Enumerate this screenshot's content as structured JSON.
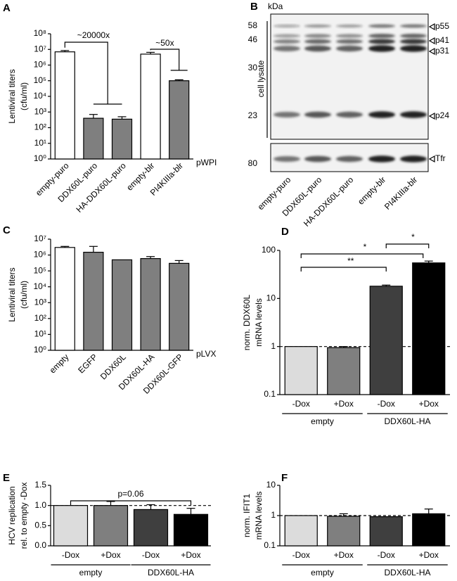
{
  "chart_data": [
    {
      "type": "bar",
      "panel": "A",
      "ylabel": [
        "Lentiviral titers",
        "(cfu/ml)"
      ],
      "log": true,
      "categories": [
        "empty-puro",
        "DDX60L-puro",
        "HA-DDX60L-puro",
        "empty-blr",
        "PI4KIIIa-blr"
      ],
      "values": [
        7000000,
        400,
        350,
        5000000,
        100000
      ],
      "errors": [
        1500000,
        300,
        150,
        1500000,
        15000
      ],
      "colors": [
        "#ffffff",
        "#7f7f7f",
        "#7f7f7f",
        "#ffffff",
        "#7f7f7f"
      ],
      "ylim": [
        1,
        100000000
      ],
      "yticks": [
        {
          "value": 1,
          "label": "10⁰"
        },
        {
          "value": 10,
          "label": "10¹"
        },
        {
          "value": 100,
          "label": "10²"
        },
        {
          "value": 1000,
          "label": "10³"
        },
        {
          "value": 10000,
          "label": "10⁴"
        },
        {
          "value": 100000,
          "label": "10⁵"
        },
        {
          "value": 1000000,
          "label": "10⁶"
        },
        {
          "value": 10000000,
          "label": "10⁷"
        },
        {
          "value": 100000000,
          "label": "10⁸"
        }
      ],
      "xlabel": "pWPI",
      "annotations": [
        "~20000x",
        "~50x"
      ]
    },
    {
      "type": "bar",
      "panel": "C",
      "ylabel": [
        "Lentiviral titers",
        "(cfu/ml)"
      ],
      "log": true,
      "categories": [
        "empty",
        "EGFP",
        "DDX60L",
        "DDX60L-HA",
        "DDX60L-GFP"
      ],
      "values": [
        3000000,
        1500000,
        500000,
        600000,
        300000
      ],
      "errors": [
        500000,
        2000000,
        0,
        200000,
        150000
      ],
      "colors": [
        "#ffffff",
        "#7f7f7f",
        "#7f7f7f",
        "#7f7f7f",
        "#7f7f7f"
      ],
      "ylim": [
        1,
        10000000
      ],
      "yticks": [
        {
          "value": 1,
          "label": "10⁰"
        },
        {
          "value": 10,
          "label": "10¹"
        },
        {
          "value": 100,
          "label": "10²"
        },
        {
          "value": 1000,
          "label": "10³"
        },
        {
          "value": 10000,
          "label": "10⁴"
        },
        {
          "value": 100000,
          "label": "10⁵"
        },
        {
          "value": 1000000,
          "label": "10⁶"
        },
        {
          "value": 10000000,
          "label": "10⁷"
        }
      ],
      "xlabel": "pLVX"
    },
    {
      "type": "bar",
      "panel": "D",
      "ylabel": [
        "norm. DDX60L",
        "mRNA levels"
      ],
      "log": true,
      "categories": [
        "-Dox",
        "+Dox",
        "-Dox",
        "+Dox"
      ],
      "groups": [
        "empty",
        "DDX60L-HA"
      ],
      "values": [
        1,
        0.95,
        18,
        55
      ],
      "errors": [
        0,
        0.05,
        1,
        5
      ],
      "colors": [
        "#dcdcdc",
        "#7f7f7f",
        "#3f3f3f",
        "#000000"
      ],
      "ylim": [
        0.1,
        100
      ],
      "yticks": [
        0.1,
        1,
        10,
        100
      ],
      "hline": 1,
      "annotations": [
        "**",
        "*",
        "*"
      ]
    },
    {
      "type": "bar",
      "panel": "E",
      "ylabel": [
        "HCV replication",
        "rel. to empty -Dox"
      ],
      "log": false,
      "categories": [
        "-Dox",
        "+Dox",
        "-Dox",
        "+Dox"
      ],
      "groups": [
        "empty",
        "DDX60L-HA"
      ],
      "values": [
        1,
        1,
        0.9,
        0.78
      ],
      "errors": [
        0,
        0.1,
        0.12,
        0.15
      ],
      "colors": [
        "#dcdcdc",
        "#7f7f7f",
        "#3f3f3f",
        "#000000"
      ],
      "ylim": [
        0,
        1.5
      ],
      "yticks": [
        {
          "value": 0,
          "label": "0.0"
        },
        0.5,
        {
          "value": 1,
          "label": "1.0"
        },
        1.5
      ],
      "hline": 1,
      "annotations": [
        "p=0.06"
      ]
    },
    {
      "type": "bar",
      "panel": "F",
      "ylabel": [
        "norm. IFIT1",
        "mRNA levels"
      ],
      "log": true,
      "categories": [
        "-Dox",
        "+Dox",
        "-Dox",
        "+Dox"
      ],
      "groups": [
        "empty",
        "DDX60L-HA"
      ],
      "values": [
        1,
        0.95,
        0.92,
        1.15
      ],
      "errors": [
        0,
        0.2,
        0,
        0.5
      ],
      "colors": [
        "#dcdcdc",
        "#7f7f7f",
        "#3f3f3f",
        "#000000"
      ],
      "ylim": [
        0.1,
        10
      ],
      "yticks": [
        0.1,
        1,
        10
      ],
      "hline": 1
    }
  ],
  "western_blot": {
    "panel": "B",
    "unit": "kDa",
    "side_label": "cell lysate",
    "markers": [
      "58",
      "46",
      "30",
      "23",
      "80"
    ],
    "bands": [
      "p55",
      "p41",
      "p31",
      "p24",
      "Tfr"
    ],
    "lanes": [
      "empty-puro",
      "DDX60L-puro",
      "HA-DDX60L-puro",
      "empty-blr",
      "PI4KIIIa-blr"
    ]
  }
}
